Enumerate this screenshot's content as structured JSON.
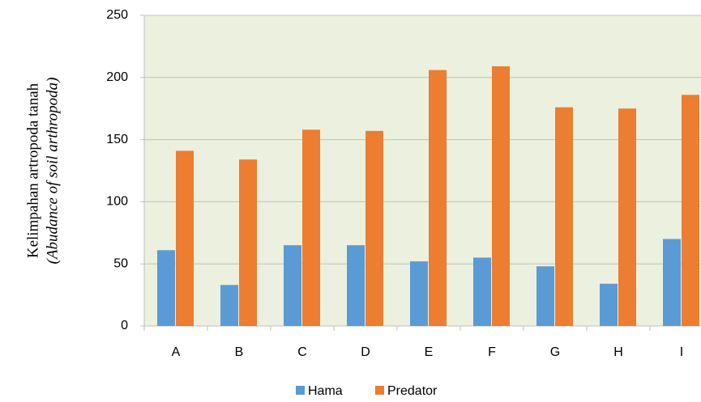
{
  "chart_data": {
    "type": "bar",
    "y_label": [
      "Kelimpahan artropoda tanah",
      "(Abudance of soil arthropoda)"
    ],
    "categories": [
      "A",
      "B",
      "C",
      "D",
      "E",
      "F",
      "G",
      "H",
      "I"
    ],
    "series": [
      {
        "name": "Hama",
        "color": "#5b9bd5",
        "values": [
          61,
          33,
          65,
          65,
          52,
          55,
          48,
          34,
          70
        ]
      },
      {
        "name": "Predator",
        "color": "#ed7d31",
        "values": [
          141,
          134,
          158,
          157,
          206,
          209,
          176,
          175,
          186
        ]
      }
    ],
    "ylim": [
      0,
      250
    ],
    "yticks": [
      0,
      50,
      100,
      150,
      200,
      250
    ],
    "grid": true,
    "legend": "bottom",
    "background": "#ebf1de"
  }
}
